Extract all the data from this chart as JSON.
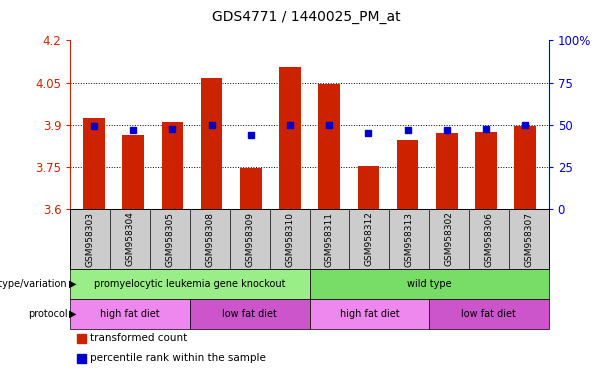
{
  "title": "GDS4771 / 1440025_PM_at",
  "samples": [
    "GSM958303",
    "GSM958304",
    "GSM958305",
    "GSM958308",
    "GSM958309",
    "GSM958310",
    "GSM958311",
    "GSM958312",
    "GSM958313",
    "GSM958302",
    "GSM958306",
    "GSM958307"
  ],
  "bar_values": [
    3.925,
    3.865,
    3.91,
    4.065,
    3.745,
    4.105,
    4.045,
    3.755,
    3.845,
    3.87,
    3.875,
    3.895
  ],
  "blue_values": [
    3.895,
    3.88,
    3.885,
    3.9,
    3.865,
    3.9,
    3.9,
    3.87,
    3.88,
    3.88,
    3.885,
    3.9
  ],
  "ymin": 3.6,
  "ymax": 4.2,
  "yticks_left": [
    3.6,
    3.75,
    3.9,
    4.05,
    4.2
  ],
  "yticks_right_pct": [
    0,
    25,
    50,
    75,
    100
  ],
  "yticks_right_labels": [
    "0",
    "25",
    "50",
    "75",
    "100%"
  ],
  "bar_color": "#cc2200",
  "blue_color": "#0000cc",
  "background_color": "#ffffff",
  "genotype_groups": [
    {
      "label": "promyelocytic leukemia gene knockout",
      "start": 0,
      "end": 6,
      "color": "#99ee88"
    },
    {
      "label": "wild type",
      "start": 6,
      "end": 12,
      "color": "#77dd66"
    }
  ],
  "protocol_groups": [
    {
      "label": "high fat diet",
      "start": 0,
      "end": 3,
      "color": "#ee88ee"
    },
    {
      "label": "low fat diet",
      "start": 3,
      "end": 6,
      "color": "#cc55cc"
    },
    {
      "label": "high fat diet",
      "start": 6,
      "end": 9,
      "color": "#ee88ee"
    },
    {
      "label": "low fat diet",
      "start": 9,
      "end": 12,
      "color": "#cc55cc"
    }
  ],
  "legend_items": [
    {
      "label": "transformed count",
      "color": "#cc2200"
    },
    {
      "label": "percentile rank within the sample",
      "color": "#0000cc"
    }
  ],
  "xtick_bg_color": "#cccccc",
  "grid_color": "#000000",
  "spine_color": "#888888"
}
